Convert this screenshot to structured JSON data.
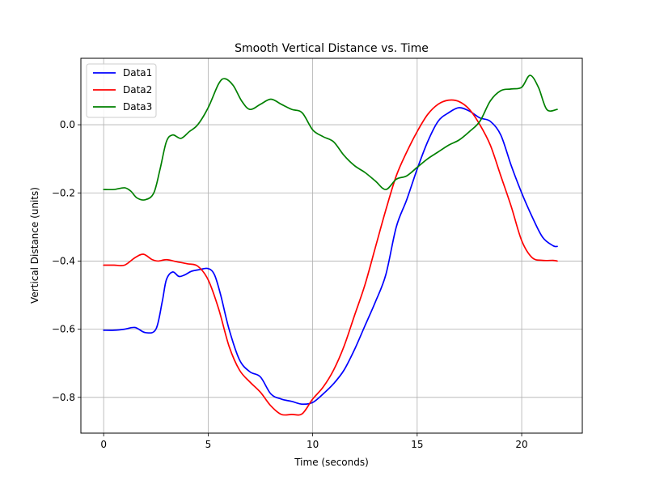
{
  "chart_data": {
    "type": "line",
    "title": "Smooth Vertical Distance vs. Time",
    "xlabel": "Time (seconds)",
    "ylabel": "Vertical Distance (units)",
    "xlim": [
      -1.09,
      22.9
    ],
    "ylim": [
      -0.905,
      0.195
    ],
    "xticks": [
      0,
      5,
      10,
      15,
      20
    ],
    "xtick_labels": [
      "0",
      "5",
      "10",
      "15",
      "20"
    ],
    "yticks": [
      -0.8,
      -0.6,
      -0.4,
      -0.2,
      0.0
    ],
    "ytick_labels": [
      "−0.8",
      "−0.6",
      "−0.4",
      "−0.2",
      "0.0"
    ],
    "grid": true,
    "legend_position": "top-left",
    "series": [
      {
        "name": "Data1",
        "color": "#0000ff",
        "x": [
          0,
          0.5,
          1.0,
          1.5,
          2.0,
          2.5,
          2.8,
          3.0,
          3.3,
          3.6,
          3.9,
          4.2,
          4.6,
          5.0,
          5.3,
          5.6,
          6.0,
          6.5,
          7.0,
          7.5,
          8.0,
          8.5,
          9.0,
          9.5,
          10.0,
          10.5,
          11.0,
          11.5,
          12.0,
          12.5,
          13.0,
          13.5,
          14.0,
          14.5,
          15.0,
          15.5,
          16.0,
          16.5,
          17.0,
          17.5,
          18.0,
          18.5,
          19.0,
          19.5,
          20.0,
          20.5,
          21.0,
          21.5,
          21.7
        ],
        "y": [
          -0.603,
          -0.603,
          -0.6,
          -0.595,
          -0.61,
          -0.6,
          -0.52,
          -0.455,
          -0.432,
          -0.445,
          -0.44,
          -0.43,
          -0.425,
          -0.422,
          -0.44,
          -0.5,
          -0.6,
          -0.69,
          -0.725,
          -0.74,
          -0.79,
          -0.805,
          -0.812,
          -0.82,
          -0.815,
          -0.79,
          -0.76,
          -0.72,
          -0.66,
          -0.59,
          -0.52,
          -0.44,
          -0.3,
          -0.22,
          -0.13,
          -0.05,
          0.01,
          0.035,
          0.05,
          0.04,
          0.02,
          0.01,
          -0.03,
          -0.12,
          -0.2,
          -0.27,
          -0.33,
          -0.355,
          -0.357
        ]
      },
      {
        "name": "Data2",
        "color": "#ff0000",
        "x": [
          0,
          0.5,
          1.0,
          1.5,
          1.9,
          2.3,
          2.6,
          3.0,
          3.5,
          4.0,
          4.5,
          5.0,
          5.5,
          6.0,
          6.5,
          7.0,
          7.5,
          8.0,
          8.5,
          9.0,
          9.5,
          10.0,
          10.5,
          11.0,
          11.5,
          12.0,
          12.5,
          13.0,
          13.5,
          14.0,
          14.5,
          15.0,
          15.5,
          16.0,
          16.5,
          17.0,
          17.5,
          18.0,
          18.5,
          19.0,
          19.5,
          20.0,
          20.5,
          21.0,
          21.5,
          21.7
        ],
        "y": [
          -0.412,
          -0.412,
          -0.412,
          -0.39,
          -0.38,
          -0.395,
          -0.4,
          -0.396,
          -0.402,
          -0.408,
          -0.415,
          -0.455,
          -0.54,
          -0.65,
          -0.72,
          -0.755,
          -0.785,
          -0.825,
          -0.85,
          -0.85,
          -0.848,
          -0.805,
          -0.77,
          -0.72,
          -0.65,
          -0.56,
          -0.47,
          -0.36,
          -0.25,
          -0.15,
          -0.08,
          -0.02,
          0.03,
          0.06,
          0.072,
          0.068,
          0.045,
          0.0,
          -0.06,
          -0.15,
          -0.24,
          -0.34,
          -0.39,
          -0.398,
          -0.398,
          -0.4
        ]
      },
      {
        "name": "Data3",
        "color": "#008000",
        "x": [
          0,
          0.5,
          1.0,
          1.3,
          1.6,
          2.0,
          2.4,
          2.7,
          3.0,
          3.3,
          3.7,
          4.1,
          4.5,
          5.0,
          5.5,
          5.8,
          6.2,
          6.6,
          7.0,
          7.5,
          8.0,
          8.5,
          9.0,
          9.5,
          10.0,
          10.5,
          11.0,
          11.5,
          12.0,
          12.5,
          13.0,
          13.5,
          14.0,
          14.5,
          15.0,
          15.5,
          16.0,
          16.5,
          17.0,
          17.5,
          18.0,
          18.5,
          19.0,
          19.5,
          20.0,
          20.4,
          20.8,
          21.2,
          21.7
        ],
        "y": [
          -0.19,
          -0.19,
          -0.185,
          -0.195,
          -0.215,
          -0.22,
          -0.2,
          -0.13,
          -0.05,
          -0.03,
          -0.04,
          -0.02,
          0.0,
          0.05,
          0.12,
          0.135,
          0.115,
          0.07,
          0.045,
          0.06,
          0.075,
          0.06,
          0.045,
          0.035,
          -0.015,
          -0.035,
          -0.05,
          -0.09,
          -0.12,
          -0.14,
          -0.165,
          -0.19,
          -0.16,
          -0.15,
          -0.125,
          -0.1,
          -0.08,
          -0.06,
          -0.045,
          -0.02,
          0.01,
          0.07,
          0.1,
          0.105,
          0.11,
          0.145,
          0.11,
          0.045,
          0.045
        ]
      }
    ]
  }
}
